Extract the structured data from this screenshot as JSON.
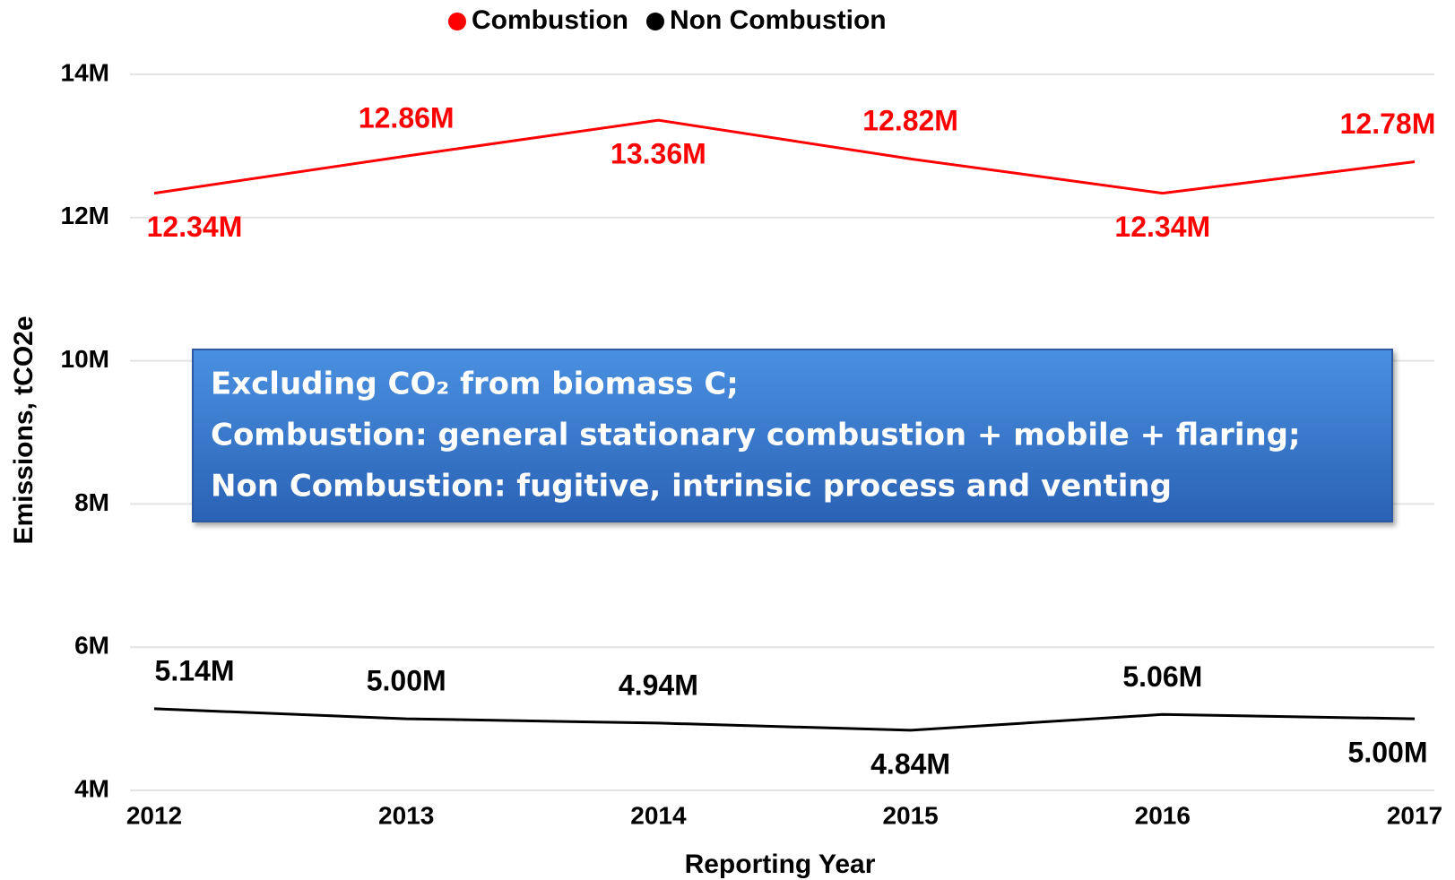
{
  "chart_data": {
    "type": "line",
    "xlabel": "Reporting Year",
    "ylabel": "Emissions, tCO2e",
    "categories": [
      "2012",
      "2013",
      "2014",
      "2015",
      "2016",
      "2017"
    ],
    "series": [
      {
        "name": "Combustion",
        "color": "#ff0000",
        "values": [
          12340000,
          12860000,
          13360000,
          12820000,
          12340000,
          12780000
        ],
        "value_labels": [
          "12.34M",
          "12.86M",
          "13.36M",
          "12.82M",
          "12.34M",
          "12.78M"
        ]
      },
      {
        "name": "Non Combustion",
        "color": "#000000",
        "values": [
          5140000,
          5000000,
          4940000,
          4840000,
          5060000,
          5000000
        ],
        "value_labels": [
          "5.14M",
          "5.00M",
          "4.94M",
          "4.84M",
          "5.06M",
          "5.00M"
        ]
      }
    ],
    "ylim": [
      4000000,
      14000000
    ],
    "yticks": [
      {
        "value": 4000000,
        "label": "4M"
      },
      {
        "value": 6000000,
        "label": "6M"
      },
      {
        "value": 8000000,
        "label": "8M"
      },
      {
        "value": 10000000,
        "label": "10M"
      },
      {
        "value": 12000000,
        "label": "12M"
      },
      {
        "value": 14000000,
        "label": "14M"
      }
    ],
    "grid": true,
    "legend": "top",
    "annotation": [
      "Excluding CO₂ from biomass C;",
      "Combustion:  general stationary combustion + mobile + flaring;",
      "Non Combustion: fugitive, intrinsic process and venting"
    ]
  }
}
